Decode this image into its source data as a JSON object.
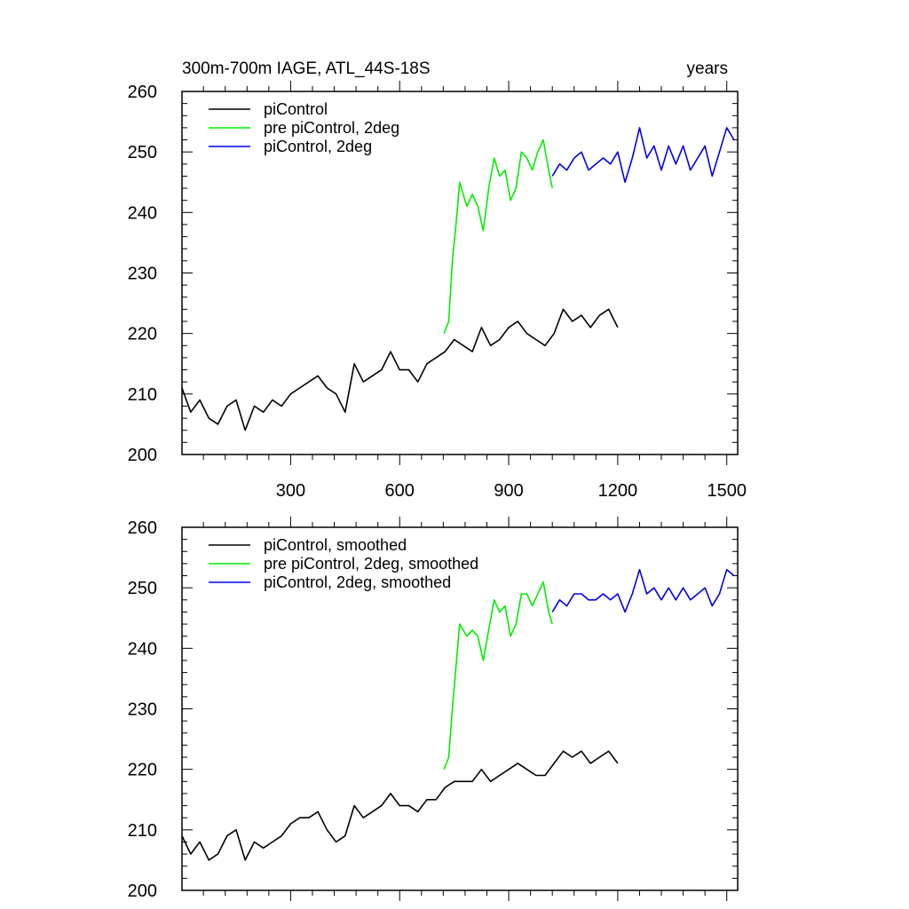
{
  "chart_data": [
    {
      "type": "line",
      "title_left": "300m-700m IAGE, ATL_44S-18S",
      "title_right": "years",
      "xlim": [
        1,
        1530
      ],
      "ylim": [
        200,
        260
      ],
      "yticks": [
        200,
        210,
        220,
        230,
        240,
        250,
        260
      ],
      "xticks": [
        300,
        600,
        900,
        1200,
        1500
      ],
      "xtick_labels_visible": true,
      "legend_position": "top-left",
      "series": [
        {
          "name": "piControl",
          "color": "#000000",
          "x": [
            1,
            25,
            50,
            75,
            100,
            125,
            150,
            175,
            200,
            225,
            250,
            275,
            300,
            325,
            350,
            375,
            400,
            425,
            450,
            475,
            500,
            525,
            550,
            575,
            600,
            625,
            650,
            675,
            700,
            725,
            750,
            775,
            800,
            825,
            850,
            875,
            900,
            925,
            950,
            975,
            1000,
            1025,
            1050,
            1075,
            1100,
            1125,
            1150,
            1175,
            1200
          ],
          "y": [
            211,
            207,
            209,
            206,
            205,
            208,
            209,
            204,
            208,
            207,
            209,
            208,
            210,
            211,
            212,
            213,
            211,
            210,
            207,
            215,
            212,
            213,
            214,
            217,
            214,
            214,
            212,
            215,
            216,
            217,
            219,
            218,
            217,
            221,
            218,
            219,
            221,
            222,
            220,
            219,
            218,
            220,
            224,
            222,
            223,
            221,
            223,
            224,
            221
          ]
        },
        {
          "name": "pre piControl, 2deg",
          "color": "#00ee00",
          "x": [
            722,
            735,
            745,
            755,
            765,
            775,
            785,
            800,
            815,
            830,
            845,
            860,
            875,
            890,
            905,
            920,
            935,
            950,
            965,
            980,
            995,
            1010,
            1020
          ],
          "y": [
            220,
            222,
            232,
            238,
            245,
            243,
            241,
            243,
            241,
            237,
            244,
            249,
            246,
            247,
            242,
            244,
            250,
            249,
            247,
            250,
            252,
            247,
            244
          ]
        },
        {
          "name": "piControl, 2deg",
          "color": "#0000ee",
          "x": [
            1020,
            1040,
            1060,
            1080,
            1100,
            1120,
            1140,
            1160,
            1180,
            1200,
            1220,
            1240,
            1260,
            1280,
            1300,
            1320,
            1340,
            1360,
            1380,
            1400,
            1420,
            1440,
            1460,
            1480,
            1500,
            1520
          ],
          "y": [
            246,
            248,
            247,
            249,
            250,
            247,
            248,
            249,
            248,
            250,
            245,
            249,
            254,
            249,
            251,
            247,
            251,
            248,
            251,
            247,
            249,
            251,
            246,
            250,
            254,
            252
          ]
        }
      ]
    },
    {
      "type": "line",
      "xlim": [
        1,
        1530
      ],
      "ylim": [
        200,
        260
      ],
      "yticks": [
        200,
        210,
        220,
        230,
        240,
        250,
        260
      ],
      "xticks": [
        300,
        600,
        900,
        1200,
        1500
      ],
      "xtick_labels_visible": false,
      "legend_position": "top-left",
      "series": [
        {
          "name": "piControl, smoothed",
          "color": "#000000",
          "x": [
            1,
            25,
            50,
            75,
            100,
            125,
            150,
            175,
            200,
            225,
            250,
            275,
            300,
            325,
            350,
            375,
            400,
            425,
            450,
            475,
            500,
            525,
            550,
            575,
            600,
            625,
            650,
            675,
            700,
            725,
            750,
            775,
            800,
            825,
            850,
            875,
            900,
            925,
            950,
            975,
            1000,
            1025,
            1050,
            1075,
            1100,
            1125,
            1150,
            1175,
            1200
          ],
          "y": [
            209,
            206,
            208,
            205,
            206,
            209,
            210,
            205,
            208,
            207,
            208,
            209,
            211,
            212,
            212,
            213,
            210,
            208,
            209,
            214,
            212,
            213,
            214,
            216,
            214,
            214,
            213,
            215,
            215,
            217,
            218,
            218,
            218,
            220,
            218,
            219,
            220,
            221,
            220,
            219,
            219,
            221,
            223,
            222,
            223,
            221,
            222,
            223,
            221
          ]
        },
        {
          "name": "pre piControl, 2deg, smoothed",
          "color": "#00ee00",
          "x": [
            722,
            735,
            745,
            755,
            765,
            775,
            785,
            800,
            815,
            830,
            845,
            860,
            875,
            890,
            905,
            920,
            935,
            950,
            965,
            980,
            995,
            1010,
            1020
          ],
          "y": [
            220,
            222,
            230,
            237,
            244,
            243,
            242,
            243,
            242,
            238,
            243,
            248,
            246,
            247,
            242,
            244,
            249,
            249,
            247,
            249,
            251,
            246,
            244
          ]
        },
        {
          "name": "piControl, 2deg, smoothed",
          "color": "#0000ee",
          "x": [
            1020,
            1040,
            1060,
            1080,
            1100,
            1120,
            1140,
            1160,
            1180,
            1200,
            1220,
            1240,
            1260,
            1280,
            1300,
            1320,
            1340,
            1360,
            1380,
            1400,
            1420,
            1440,
            1460,
            1480,
            1500,
            1520
          ],
          "y": [
            246,
            248,
            247,
            249,
            249,
            248,
            248,
            249,
            248,
            249,
            246,
            249,
            253,
            249,
            250,
            248,
            250,
            248,
            250,
            248,
            249,
            250,
            247,
            249,
            253,
            252
          ]
        }
      ]
    }
  ]
}
